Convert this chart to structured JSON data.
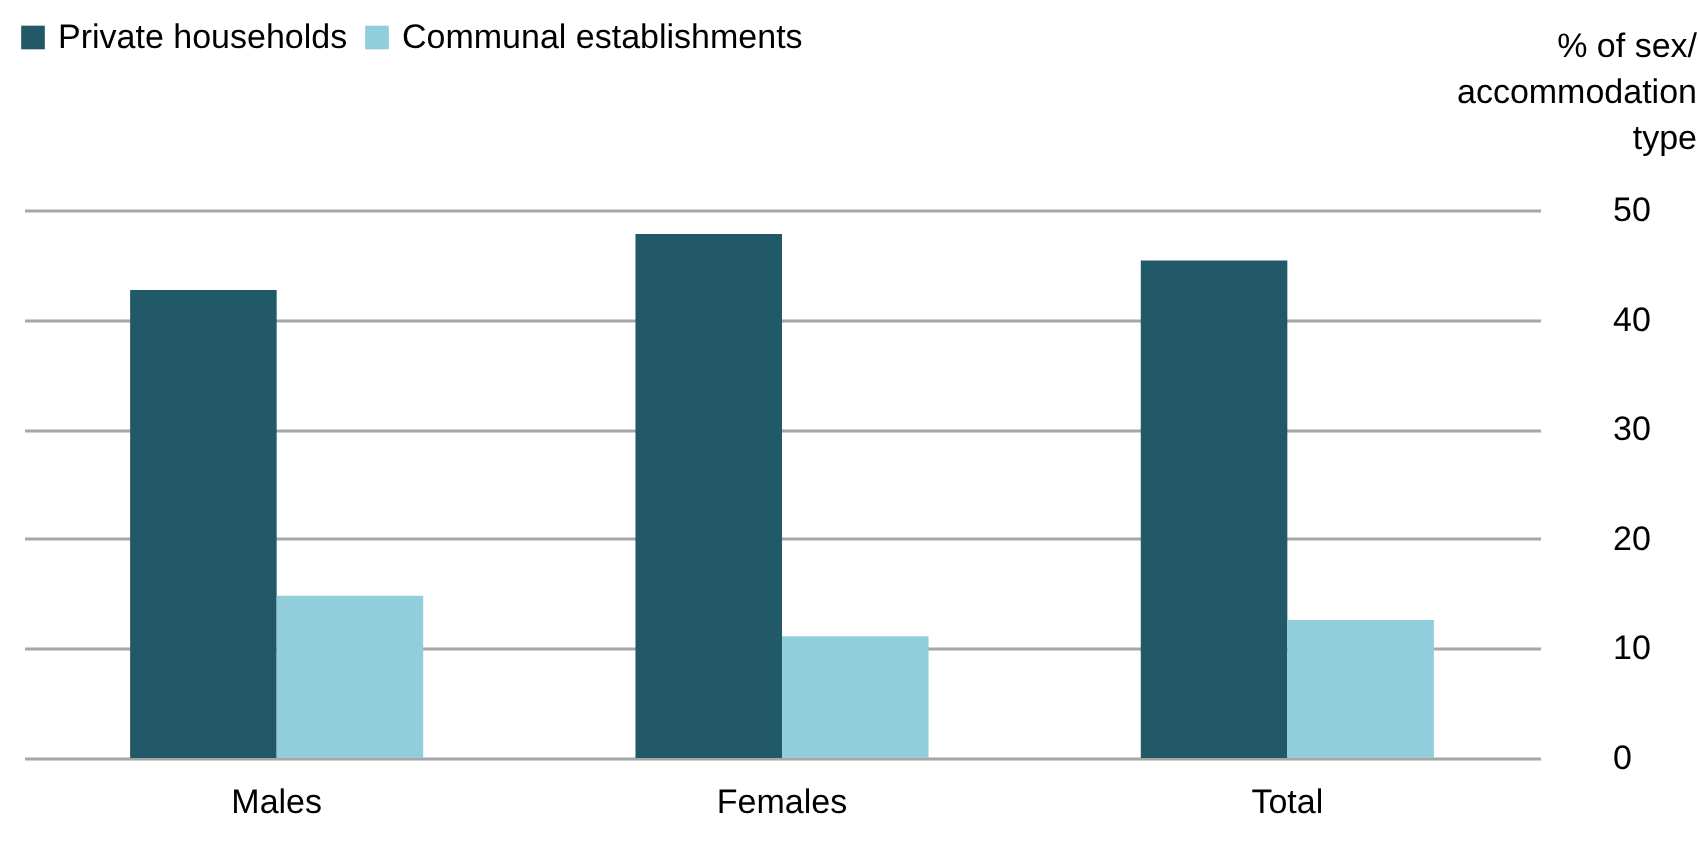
{
  "chart_data": {
    "type": "bar",
    "ylabel": "% of sex/ accommodation type",
    "categories": [
      "Males",
      "Females",
      "Total"
    ],
    "series": [
      {
        "name": "Private households",
        "color": "#215968",
        "values": [
          42.7,
          47.8,
          45.4
        ]
      },
      {
        "name": "Communal establishments",
        "color": "#92cddc",
        "values": [
          14.8,
          11.1,
          12.6
        ]
      }
    ],
    "ylim": [
      0,
      50
    ],
    "yticks": [
      0,
      10,
      20,
      30,
      40,
      50
    ],
    "grid": "y",
    "legend": "top left"
  }
}
